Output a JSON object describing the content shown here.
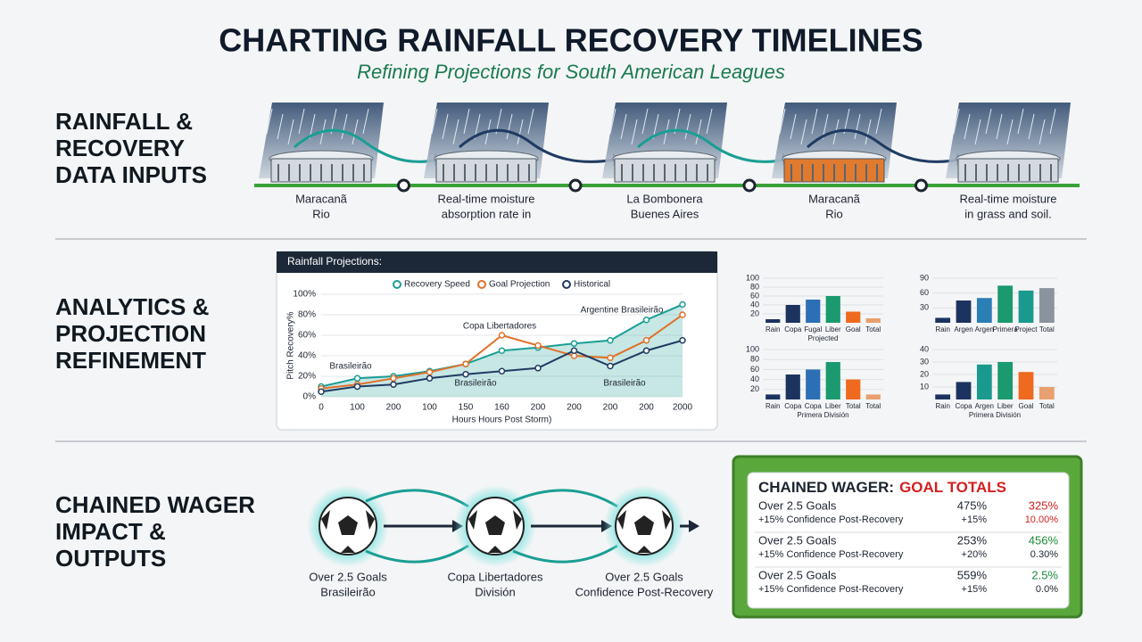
{
  "header": {
    "title": "CHARTING RAINFALL RECOVERY TIMELINES",
    "subtitle": "Refining Projections for South American Leagues"
  },
  "inputs": {
    "label": [
      "RAINFALL &",
      "RECOVERY",
      "DATA INPUTS"
    ],
    "stages": [
      {
        "lines": [
          "Maracanã",
          "Rio"
        ]
      },
      {
        "lines": [
          "Real-time moisture",
          "absorption rate in"
        ]
      },
      {
        "lines": [
          "La Bombonera",
          "Buenes Aires"
        ]
      },
      {
        "lines": [
          "Maracanã",
          "Rio"
        ]
      },
      {
        "lines": [
          "Real-time moisture",
          "in grass and soil."
        ]
      }
    ]
  },
  "analytics": {
    "label": [
      "ANALYTICS &",
      "PROJECTION",
      "REFINEMENT"
    ],
    "line_chart": {
      "type": "line",
      "title": "Rainfall Projections:",
      "x_label": "Hours Hours Post Storm)",
      "y_label": "Pitch Recovery%",
      "categories": [
        "0",
        "100",
        "200",
        "100",
        "150",
        "160",
        "200",
        "200",
        "200",
        "200",
        "2000"
      ],
      "ylim": [
        0,
        100
      ],
      "yticks": [
        {
          "value": 0,
          "label": "0%"
        },
        {
          "value": 20,
          "label": "20%"
        },
        {
          "value": 40,
          "label": "40%"
        },
        {
          "value": 60,
          "label": "60%"
        },
        {
          "value": 80,
          "label": "80%"
        },
        {
          "value": 100,
          "label": "100%"
        }
      ],
      "series": [
        {
          "name": "Recovery Speed",
          "color": "#1a9e95",
          "values": [
            10,
            18,
            20,
            25,
            32,
            45,
            48,
            52,
            55,
            75,
            90
          ]
        },
        {
          "name": "Goal Projection",
          "color": "#e0712b",
          "values": [
            8,
            12,
            18,
            24,
            32,
            60,
            50,
            40,
            38,
            55,
            80
          ]
        },
        {
          "name": "Historical",
          "color": "#1f3b63",
          "values": [
            5,
            10,
            12,
            18,
            22,
            25,
            28,
            45,
            30,
            45,
            55
          ]
        }
      ],
      "annotations": [
        "Copa Libertadores",
        "Argentine Brasileirão",
        "Brasileirão",
        "Brasileirão",
        "Brasileirão"
      ]
    },
    "bar_charts": [
      {
        "type": "bar",
        "subtitle": "Projected",
        "categories": [
          "Rain",
          "Copa",
          "Fugal",
          "Liber",
          "Goal",
          "Total"
        ],
        "values": [
          8,
          40,
          52,
          60,
          25,
          10
        ],
        "colors": [
          "#1c3360",
          "#1c3360",
          "#2c6fb5",
          "#1a9a6e",
          "#ee6a1e",
          "#e8a06e"
        ],
        "ylim": [
          0,
          100
        ],
        "yticks": [
          20,
          40,
          60,
          80,
          100
        ]
      },
      {
        "type": "bar",
        "categories": [
          "Rain",
          "Argen",
          "Argen",
          "Primera",
          "Project",
          "Total"
        ],
        "values": [
          10,
          45,
          50,
          75,
          65,
          70
        ],
        "colors": [
          "#1c3360",
          "#1c3360",
          "#2c7fb5",
          "#1a9a6e",
          "#1a9a8e",
          "#8a939e"
        ],
        "ylim": [
          0,
          90
        ],
        "yticks": [
          30,
          60,
          90
        ]
      },
      {
        "type": "bar",
        "subtitle": "Primera División",
        "categories": [
          "Rain",
          "Copa",
          "Copa",
          "Liber",
          "Total",
          "Total"
        ],
        "values": [
          10,
          50,
          60,
          75,
          40,
          10
        ],
        "colors": [
          "#1c3360",
          "#1c3360",
          "#2c6fb5",
          "#1a9a6e",
          "#ee6a1e",
          "#e8a06e"
        ],
        "ylim": [
          0,
          100
        ],
        "yticks": [
          20,
          40,
          60,
          80,
          100
        ]
      },
      {
        "type": "bar",
        "subtitle": "Primera División",
        "categories": [
          "Rain",
          "Copa",
          "Argen",
          "Liber",
          "Goal",
          "Total"
        ],
        "values": [
          4,
          14,
          28,
          30,
          22,
          10
        ],
        "colors": [
          "#1c3360",
          "#1c3360",
          "#1a9a8e",
          "#1a9a6e",
          "#ee6a1e",
          "#e8a06e"
        ],
        "ylim": [
          0,
          40
        ],
        "yticks": [
          10,
          20,
          30,
          40
        ]
      }
    ]
  },
  "outputs": {
    "label": [
      "CHAINED WAGER",
      "IMPACT &",
      "OUTPUTS"
    ],
    "steps": [
      {
        "lines": [
          "Over 2.5 Goals",
          "Brasileirão"
        ]
      },
      {
        "lines": [
          "Copa Libertadores",
          "División"
        ]
      },
      {
        "lines": [
          "Over 2.5 Goals",
          "Confidence Post-Recovery"
        ]
      }
    ],
    "card": {
      "title": "CHAINED WAGER:",
      "title_highlight": "GOAL TOTALS",
      "rows": [
        {
          "label": "Over 2.5 Goals",
          "sub": "+15% Confidence Post-Recovery",
          "a": "475%",
          "a_sub": "+15%",
          "b": "325%",
          "b_sub": "10.00%"
        },
        {
          "label": "Over 2.5 Goals",
          "sub": "+15% Confidence Post-Recovery",
          "a": "253%",
          "a_sub": "+20%",
          "b": "456%",
          "b_sub": "0.30%"
        },
        {
          "label": "Over 2.5 Goals",
          "sub": "+15% Confidence Post-Recovery",
          "a": "559%",
          "a_sub": "+15%",
          "b": "2.5%",
          "b_sub": "0.0%"
        }
      ]
    }
  }
}
